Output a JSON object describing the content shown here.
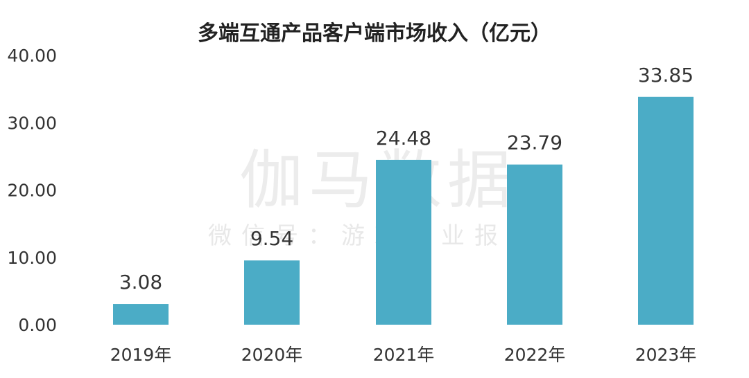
{
  "chart_data": {
    "type": "bar",
    "title": "多端互通产品客户端市场收入（亿元）",
    "categories": [
      "2019年",
      "2020年",
      "2021年",
      "2022年",
      "2023年"
    ],
    "values": [
      3.08,
      9.54,
      24.48,
      23.79,
      33.85
    ],
    "data_labels": [
      "3.08",
      "9.54",
      "24.48",
      "23.79",
      "33.85"
    ],
    "yticks": [
      "0.00",
      "10.00",
      "20.00",
      "30.00",
      "40.00"
    ],
    "ylim": [
      0,
      40
    ],
    "xlabel": "",
    "ylabel": "",
    "grid": false,
    "bar_color": "#4bacc6"
  },
  "watermark": {
    "main": "伽马数据",
    "sub": "微信号：游戏产业报告"
  }
}
